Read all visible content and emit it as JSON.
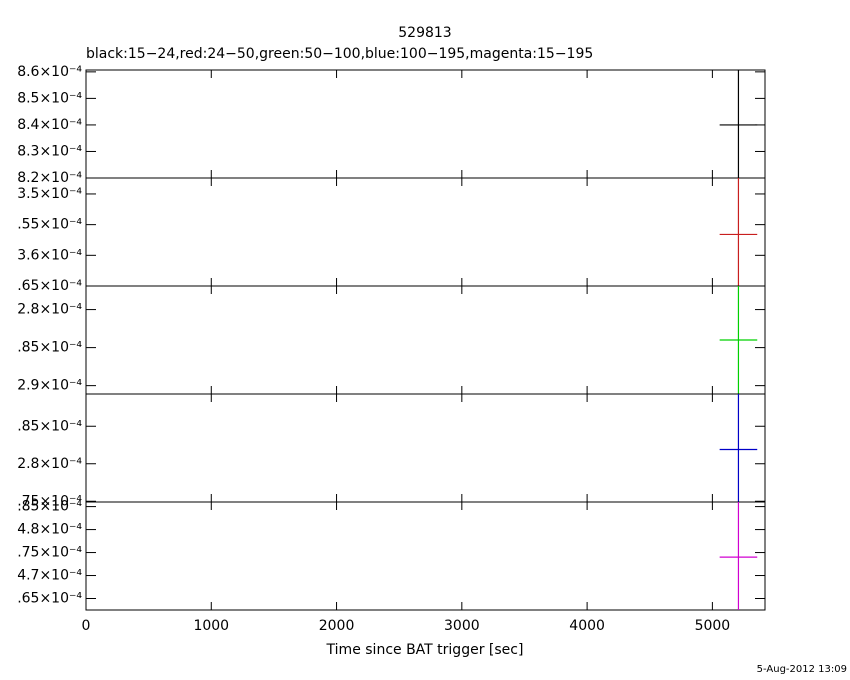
{
  "title": "529813",
  "subtitle": "black:15−24,red:24−50,green:50−100,blue:100−195,magenta:15−195",
  "xlabel": "Time since BAT trigger [sec]",
  "timestamp": "5-Aug-2012 13:09",
  "chart_data": [
    {
      "type": "errorbar",
      "color": "#000000",
      "xlim": [
        0,
        5420
      ],
      "xticks": [
        0,
        1000,
        2000,
        3000,
        4000,
        5000
      ],
      "ylim": [
        0.00082,
        0.0008607
      ],
      "yticks": [
        {
          "value": 0.00086,
          "label": "8.6×10⁻⁴"
        },
        {
          "value": 0.00085,
          "label": "8.5×10⁻⁴"
        },
        {
          "value": 0.00084,
          "label": "8.4×10⁻⁴"
        },
        {
          "value": 0.00083,
          "label": "8.3×10⁻⁴"
        },
        {
          "value": 0.00082,
          "label": "8.2×10⁻⁴"
        }
      ],
      "x": [
        5208
      ],
      "xerr": [
        150
      ],
      "values": [
        0.00084
      ],
      "yerr": [
        5e-05
      ]
    },
    {
      "type": "errorbar",
      "color": "#c81e1e",
      "xlim": [
        0,
        5420
      ],
      "xticks": [
        0,
        1000,
        2000,
        3000,
        4000,
        5000
      ],
      "ylim": [
        0.000365,
        0.0003474
      ],
      "yticks": [
        {
          "value": 0.00035,
          "label": "3.5×10⁻⁴"
        },
        {
          "value": 0.000355,
          "label": ".55×10⁻⁴"
        },
        {
          "value": 0.00036,
          "label": "3.6×10⁻⁴"
        },
        {
          "value": 0.000365,
          "label": ".65×10⁻⁴"
        }
      ],
      "x": [
        5208
      ],
      "xerr": [
        150
      ],
      "values": [
        0.0003566
      ],
      "yerr": [
        2e-05
      ]
    },
    {
      "type": "errorbar",
      "color": "#00d000",
      "xlim": [
        0,
        5420
      ],
      "xticks": [
        0,
        1000,
        2000,
        3000,
        4000,
        5000
      ],
      "ylim": [
        0.0002911,
        0.0002769
      ],
      "yticks": [
        {
          "value": 0.00028,
          "label": "2.8×10⁻⁴"
        },
        {
          "value": 0.000285,
          "label": ".85×10⁻⁴"
        },
        {
          "value": 0.00029,
          "label": "2.9×10⁻⁴"
        }
      ],
      "x": [
        5208
      ],
      "xerr": [
        150
      ],
      "values": [
        0.000284
      ],
      "yerr": [
        2e-05
      ]
    },
    {
      "type": "errorbar",
      "color": "#0000c8",
      "xlim": [
        0,
        5420
      ],
      "xticks": [
        0,
        1000,
        2000,
        3000,
        4000,
        5000
      ],
      "ylim": [
        0.0002749,
        0.0002893
      ],
      "yticks": [
        {
          "value": 0.000285,
          "label": ".85×10⁻⁴"
        },
        {
          "value": 0.00028,
          "label": "2.8×10⁻⁴"
        },
        {
          "value": 0.000275,
          "label": ".75×10⁻⁴"
        }
      ],
      "x": [
        5208
      ],
      "xerr": [
        150
      ],
      "values": [
        0.0002819
      ],
      "yerr": [
        2e-05
      ]
    },
    {
      "type": "errorbar",
      "color": "#d000d0",
      "xlim": [
        0,
        5420
      ],
      "xticks": [
        0,
        1000,
        2000,
        3000,
        4000,
        5000
      ],
      "ylim": [
        0.0004625,
        0.000486
      ],
      "yticks": [
        {
          "value": 0.000485,
          "label": ".85×10⁻⁴"
        },
        {
          "value": 0.00048,
          "label": "4.8×10⁻⁴"
        },
        {
          "value": 0.000475,
          "label": ".75×10⁻⁴"
        },
        {
          "value": 0.00047,
          "label": "4.7×10⁻⁴"
        },
        {
          "value": 0.000465,
          "label": ".65×10⁻⁴"
        }
      ],
      "x": [
        5208
      ],
      "xerr": [
        150
      ],
      "values": [
        0.000474
      ],
      "yerr": [
        3e-05
      ]
    }
  ]
}
